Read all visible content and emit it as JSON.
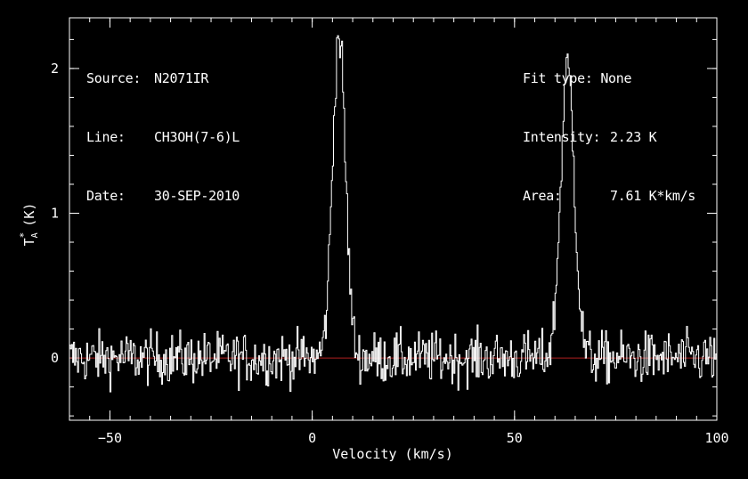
{
  "info_left": {
    "source_label": "Source:",
    "source_value": "N2071IR",
    "line_label": "Line:",
    "line_value": "CH3OH(7-6)L",
    "date_label": "Date:",
    "date_value": "30-SEP-2010"
  },
  "info_right": {
    "fit_label": "Fit type:",
    "fit_value": "None",
    "intensity_label": "Intensity:",
    "intensity_value": "2.23 K",
    "area_label": "Area:",
    "area_value": "7.61 K*km/s"
  },
  "chart_data": {
    "type": "line",
    "xlabel": "Velocity (km/s)",
    "ylabel_main": "T",
    "ylabel_sup": "*",
    "ylabel_sub": "A",
    "ylabel_unit": "(K)",
    "xlim": [
      -60,
      100
    ],
    "ylim": [
      -0.43,
      2.35
    ],
    "x_ticks": [
      -50,
      0,
      50,
      100
    ],
    "x_tick_labels": [
      "−50",
      "0",
      "50",
      "100"
    ],
    "y_ticks": [
      0,
      1,
      2
    ],
    "y_tick_labels": [
      "0",
      "1",
      "2"
    ],
    "x_minor_step": 5,
    "y_minor_step": 0.2,
    "baseline": 0,
    "colors": {
      "spectrum": "#ffffff",
      "baseline": "#b02020",
      "axes": "#ffffff",
      "background": "#000000"
    },
    "series": [
      {
        "noise_rms": 0.09,
        "x_step": 0.25,
        "peaks": [
          {
            "center": 6.5,
            "amplitude": 2.23,
            "width": 1.6
          },
          {
            "center": 63.0,
            "amplitude": 2.0,
            "width": 1.7
          }
        ]
      }
    ]
  }
}
